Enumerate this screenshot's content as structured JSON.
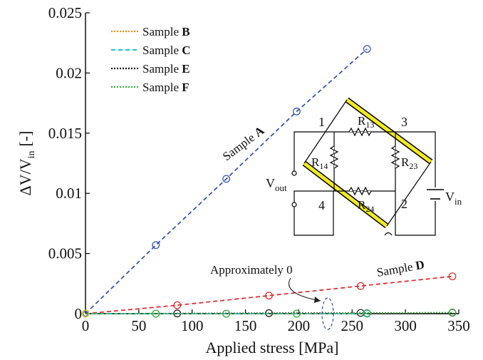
{
  "chart_data": {
    "type": "line",
    "xlabel": "Applied stress [MPa]",
    "ylabel_main": "ΔV/V",
    "ylabel_sub": "in",
    "ylabel_unit": "[-]",
    "xlim": [
      0,
      350
    ],
    "ylim": [
      0,
      0.025
    ],
    "x_ticks": [
      0,
      50,
      100,
      150,
      200,
      250,
      300,
      350
    ],
    "y_ticks": [
      0,
      0.005,
      0.01,
      0.015,
      0.02,
      0.025
    ],
    "x_tick_labels": [
      "0",
      "50",
      "100",
      "150",
      "200",
      "250",
      "300",
      "350"
    ],
    "y_tick_labels": [
      "0",
      "0.005",
      "0.01",
      "0.015",
      "0.02",
      "0.025"
    ],
    "series": [
      {
        "name": "A",
        "label_prefix": "Sample ",
        "label_bold": "A",
        "color": "#2c4eb5",
        "in_legend": false,
        "x": [
          0,
          66,
          132,
          198,
          264
        ],
        "y": [
          0,
          0.0057,
          0.0112,
          0.0168,
          0.022
        ]
      },
      {
        "name": "D",
        "label_prefix": "Sample ",
        "label_bold": "D",
        "color": "#e0262c",
        "in_legend": false,
        "x": [
          0,
          86,
          172,
          258,
          344
        ],
        "y": [
          0,
          0.0007,
          0.0015,
          0.0023,
          0.0031
        ]
      },
      {
        "name": "B",
        "label_prefix": "Sample ",
        "label_bold": "B",
        "color": "#f08a10",
        "in_legend": true,
        "x": [
          0,
          66,
          132,
          198,
          264
        ],
        "y": [
          0,
          0,
          0,
          0,
          0
        ]
      },
      {
        "name": "C",
        "label_prefix": "Sample ",
        "label_bold": "C",
        "color": "#26c6dc",
        "in_legend": true,
        "x": [
          0,
          66,
          132,
          198,
          264
        ],
        "y": [
          0,
          0,
          0,
          0,
          0
        ]
      },
      {
        "name": "E",
        "label_prefix": "Sample ",
        "label_bold": "E",
        "color": "#111111",
        "in_legend": true,
        "x": [
          0,
          86,
          172,
          258,
          344
        ],
        "y": [
          0,
          2e-05,
          4e-05,
          6e-05,
          8e-05
        ]
      },
      {
        "name": "F",
        "label_prefix": "Sample ",
        "label_bold": "F",
        "color": "#3cae3c",
        "in_legend": true,
        "x": [
          0,
          66,
          132,
          198,
          264,
          344
        ],
        "y": [
          0,
          0,
          0,
          0,
          5e-05,
          0.0001
        ]
      }
    ],
    "annotation": "Approximately 0",
    "legend_position": "top-left"
  },
  "circuit": {
    "node_1": "1",
    "node_2": "2",
    "node_3": "3",
    "node_4": "4",
    "r13": "R",
    "r13_sub": "13",
    "r23": "R",
    "r23_sub": "23",
    "r14": "R",
    "r14_sub": "14",
    "r24": "R",
    "r24_sub": "24",
    "vout": "V",
    "vout_sub": "out",
    "vin": "V",
    "vin_sub": "in"
  }
}
